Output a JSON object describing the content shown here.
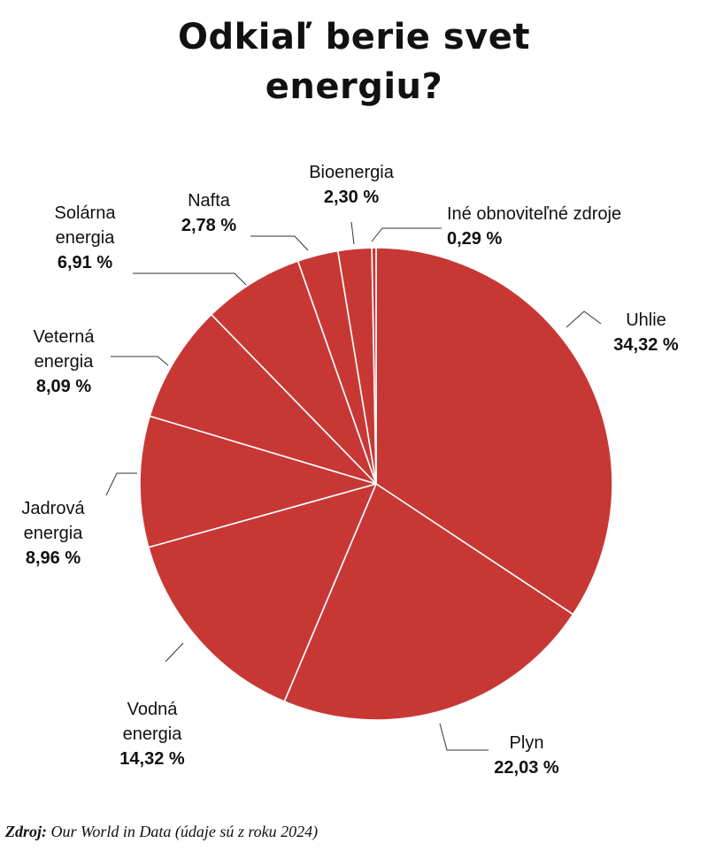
{
  "title_lines": [
    "Odkiaľ berie svet",
    "energiu?"
  ],
  "source": {
    "label": "Zdroj:",
    "text": " Our World in Data (údaje sú z roku 2024)"
  },
  "colors": {
    "slice": "#c73835",
    "separator": "#ffffff",
    "leader": "#333333"
  },
  "chart_data": {
    "type": "pie",
    "title": "Odkiaľ berie svet energiu?",
    "start": "12 o'clock",
    "direction": "clockwise",
    "slices": [
      {
        "label": "Uhlie",
        "value": 34.32,
        "value_text": "34,32 %"
      },
      {
        "label": "Plyn",
        "value": 22.03,
        "value_text": "22,03 %"
      },
      {
        "label": "Vodná energia",
        "value": 14.32,
        "value_text": "14,32 %"
      },
      {
        "label": "Jadrová energia",
        "value": 8.96,
        "value_text": "8,96 %"
      },
      {
        "label": "Veterná energia",
        "value": 8.09,
        "value_text": "8,09 %"
      },
      {
        "label": "Solárna energia",
        "value": 6.91,
        "value_text": "6,91 %"
      },
      {
        "label": "Nafta",
        "value": 2.78,
        "value_text": "2,78 %"
      },
      {
        "label": "Bioenergia",
        "value": 2.3,
        "value_text": "2,30 %"
      },
      {
        "label": "Iné obnoviteľné zdroje",
        "value": 0.29,
        "value_text": "0,29 %"
      }
    ]
  }
}
